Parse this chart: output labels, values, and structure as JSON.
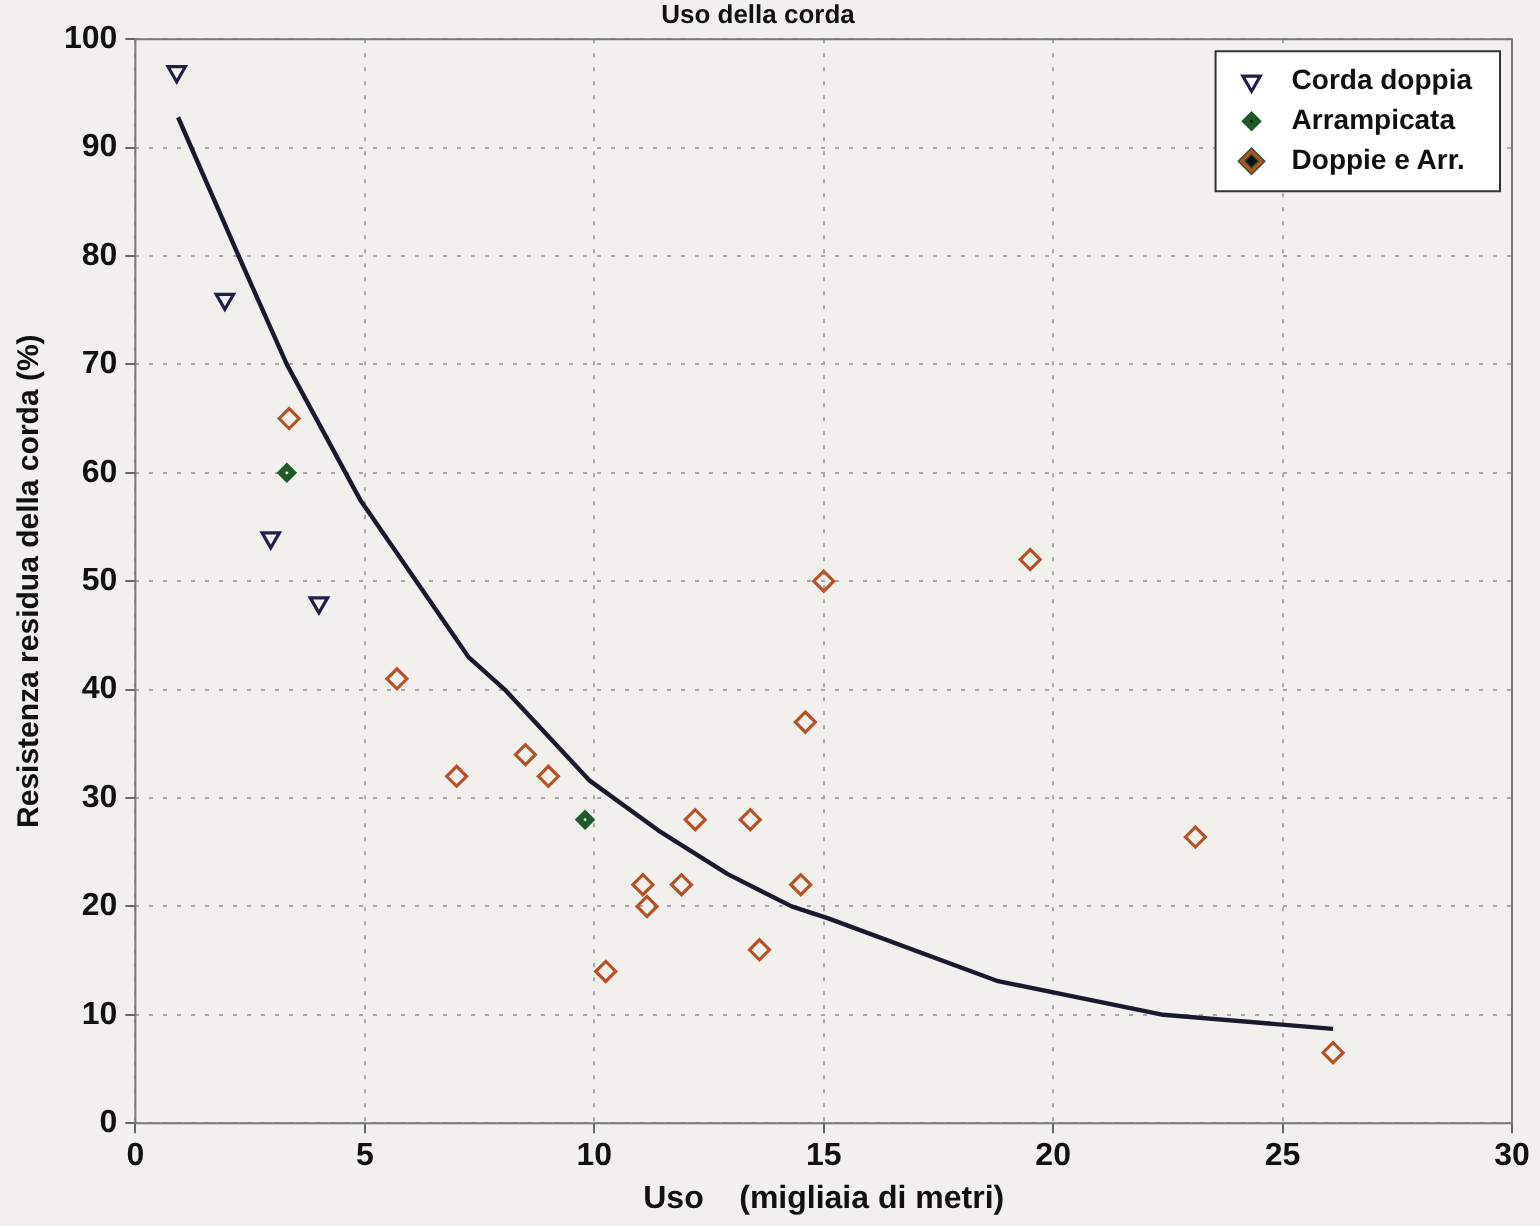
{
  "chart_data": {
    "type": "scatter",
    "title": "Uso della corda",
    "xlabel": "Uso    (migliaia di metri)",
    "ylabel": "Resistenza residua della corda (%)",
    "xlim": [
      0,
      30
    ],
    "xticks": [
      0,
      5,
      10,
      15,
      20,
      25,
      30
    ],
    "ylim": [
      0,
      100
    ],
    "yticks": [
      0,
      10,
      20,
      30,
      40,
      50,
      60,
      70,
      80,
      90,
      100
    ],
    "grid": true,
    "legend": "top right",
    "series": [
      {
        "name": "Corda doppia",
        "color": "#20204a",
        "marker": "triangle",
        "x": [
          0.9,
          1.95,
          2.95,
          4.0
        ],
        "values": [
          97,
          76,
          54,
          48
        ]
      },
      {
        "name": "Arrampicata",
        "color": "#1f5a2a",
        "marker": "diamond",
        "x": [
          3.3,
          9.8
        ],
        "values": [
          60,
          28
        ]
      },
      {
        "name": "Doppie e Arr.",
        "color": "#b5522a",
        "marker": "diamond",
        "x": [
          3.35,
          5.7,
          7.0,
          8.5,
          9.0,
          10.25,
          11.06,
          11.15,
          11.9,
          12.2,
          13.4,
          13.6,
          14.5,
          14.6,
          15.0,
          19.5,
          23.1,
          26.1
        ],
        "values": [
          65,
          41,
          32,
          34,
          32,
          14,
          22,
          20,
          22,
          28,
          28,
          16,
          22,
          37,
          50,
          52,
          26.4,
          6.5
        ]
      },
      {
        "type": "line",
        "color": "#1a1a2e",
        "marker": "none",
        "line_style": "solid",
        "x": [
          0.93,
          2.25,
          3.3,
          4.9,
          7.26,
          8.05,
          9.9,
          11.4,
          12.9,
          14.3,
          15.1,
          18.8,
          22.4,
          26.1
        ],
        "values": [
          92.8,
          80,
          70,
          57.5,
          43,
          40,
          31.6,
          27,
          23,
          20,
          18.9,
          13.1,
          10,
          8.7
        ]
      }
    ]
  }
}
